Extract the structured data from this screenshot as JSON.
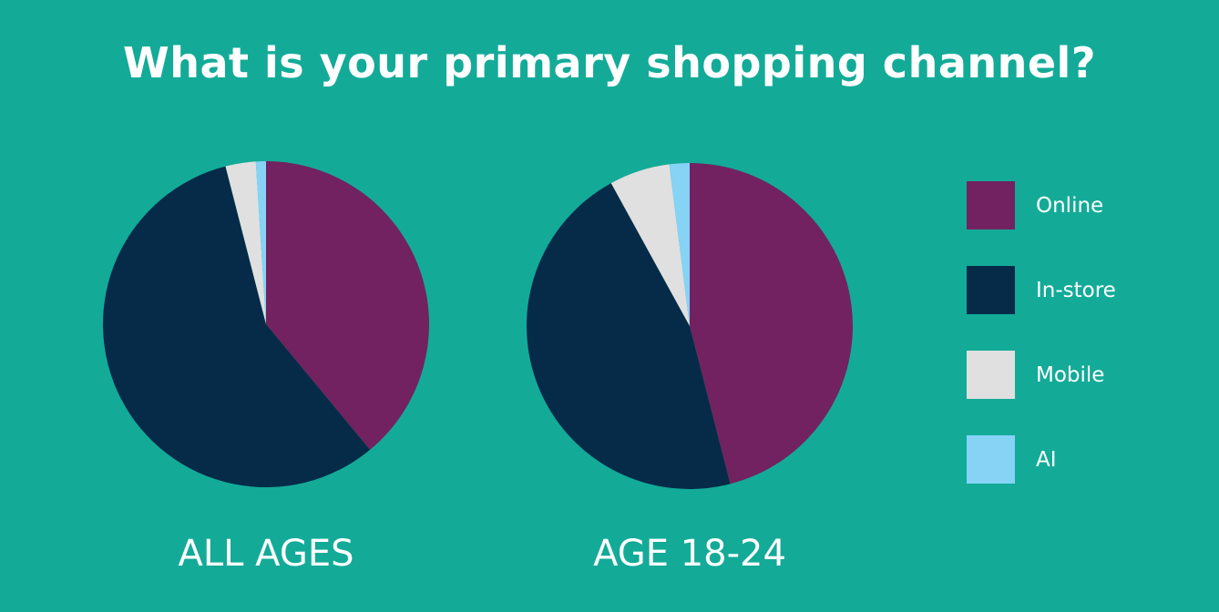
{
  "chart_data": [
    {
      "type": "pie",
      "title": "What is your primary shopping channel?",
      "subtitle": "ALL AGES",
      "categories": [
        "Online",
        "In-store",
        "Mobile",
        "AI"
      ],
      "values": [
        39,
        57,
        3,
        1
      ],
      "colors": [
        "#722260",
        "#052b49",
        "#e0e0e0",
        "#86d3f5"
      ],
      "start": "top",
      "direction": "clockwise",
      "legend": "right"
    },
    {
      "type": "pie",
      "title": "What is your primary shopping channel?",
      "subtitle": "AGE 18-24",
      "categories": [
        "Online",
        "In-store",
        "Mobile",
        "AI"
      ],
      "values": [
        46,
        46,
        6,
        2
      ],
      "colors": [
        "#722260",
        "#052b49",
        "#e0e0e0",
        "#86d3f5"
      ],
      "start": "top",
      "direction": "clockwise",
      "legend": "right"
    }
  ],
  "page": {
    "title": "What is your primary shopping channel?",
    "labels": [
      "ALL AGES",
      "AGE 18-24"
    ]
  },
  "legend": {
    "items": [
      {
        "label": "Online",
        "color": "#722260"
      },
      {
        "label": "In-store",
        "color": "#052b49"
      },
      {
        "label": "Mobile",
        "color": "#e0e0e0"
      },
      {
        "label": "AI",
        "color": "#86d3f5"
      }
    ]
  },
  "background_color": "#13ab98"
}
